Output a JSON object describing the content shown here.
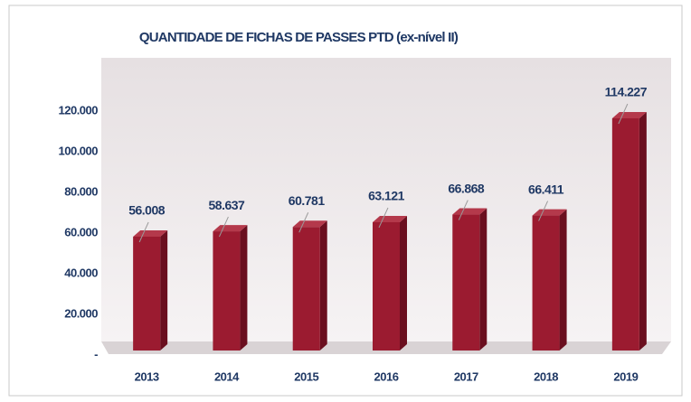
{
  "chart_data": {
    "type": "bar",
    "title": "QUANTIDADE DE FICHAS DE PASSES PTD (ex-nível II)",
    "categories": [
      "2013",
      "2014",
      "2015",
      "2016",
      "2017",
      "2018",
      "2019"
    ],
    "values": [
      56008,
      58637,
      60781,
      63121,
      66868,
      66411,
      114227
    ],
    "value_labels": [
      "56.008",
      "58.637",
      "60.781",
      "63.121",
      "66.868",
      "66.411",
      "114.227"
    ],
    "color": "#9b1b30",
    "ylim": [
      0,
      140000
    ],
    "yticks": [
      {
        "value": 0,
        "label": "-"
      },
      {
        "value": 20000,
        "label": "20.000"
      },
      {
        "value": 40000,
        "label": "40.000"
      },
      {
        "value": 60000,
        "label": "60.000"
      },
      {
        "value": 80000,
        "label": "80.000"
      },
      {
        "value": 100000,
        "label": "100.000"
      },
      {
        "value": 120000,
        "label": "120.000"
      }
    ],
    "grid": false
  }
}
